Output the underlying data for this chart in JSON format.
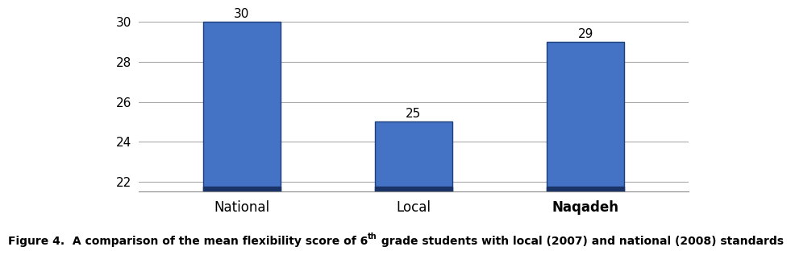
{
  "categories": [
    "National",
    "Local",
    "Naqadeh"
  ],
  "values": [
    30,
    25,
    29
  ],
  "bar_color_face": "#4472C4",
  "bar_color_dark": "#1F3F7A",
  "bar_bottom_dark": "#1A3468",
  "bar_width": 0.45,
  "ylim": [
    21.5,
    30.5
  ],
  "yticks": [
    22,
    24,
    26,
    28,
    30
  ],
  "value_labels": [
    "30",
    "25",
    "29"
  ],
  "label_fontsize": 11,
  "tick_fontsize": 11,
  "xlabel_fontsize": 12,
  "background_color": "#FFFFFF",
  "caption_part1": "Figure 4.  A comparison of the mean flexibility score of 6",
  "caption_super": "th",
  "caption_part2": " grade students with local (2007) and national (2008) standards",
  "caption_fontsize": 10,
  "grid_color": "#AAAAAA"
}
